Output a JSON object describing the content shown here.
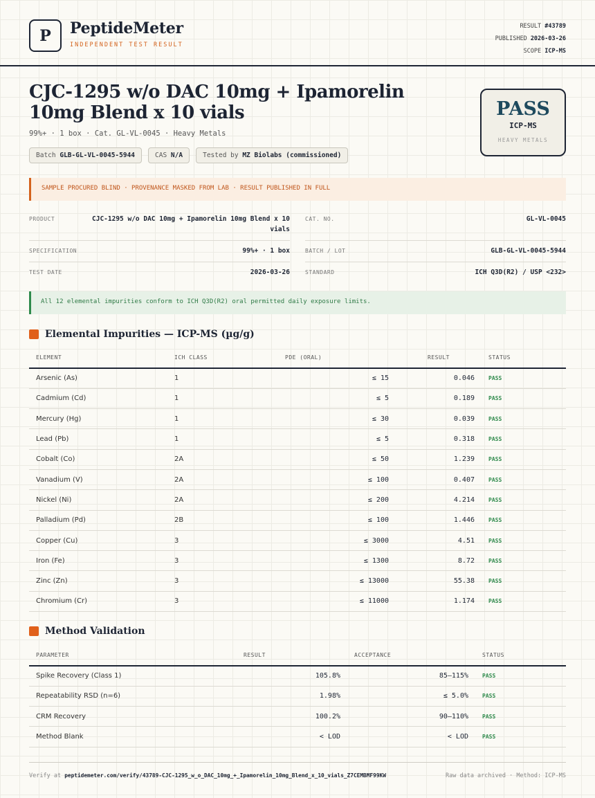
{
  "header": {
    "logo_letter": "P",
    "brand": "PeptideMeter",
    "tagline": "INDEPENDENT TEST RESULT",
    "result_label": "RESULT",
    "result_id": "#43789",
    "published_label": "PUBLISHED",
    "published": "2026-03-26",
    "scope_label": "SCOPE",
    "scope": "ICP-MS"
  },
  "product": {
    "title": "CJC-1295 w/o DAC 10mg + Ipamorelin 10mg Blend x 10 vials",
    "subtitle": "99%+ · 1 box · Cat. GL-VL-0045 · Heavy Metals",
    "chips": {
      "batch_label": "Batch",
      "batch": "GLB-GL-VL-0045-5944",
      "cas_label": "CAS",
      "cas": "N/A",
      "tested_label": "Tested by",
      "tested": "MZ Biolabs (commissioned)"
    }
  },
  "stamp": {
    "verdict": "PASS",
    "method": "ICP-MS",
    "category": "HEAVY METALS"
  },
  "notice": "SAMPLE PROCURED BLIND · PROVENANCE MASKED FROM LAB · RESULT PUBLISHED IN FULL",
  "info": {
    "product_label": "PRODUCT",
    "product": "CJC-1295 w/o DAC 10mg + Ipamorelin 10mg Blend x 10 vials",
    "catno_label": "CAT. NO.",
    "catno": "GL-VL-0045",
    "spec_label": "SPECIFICATION",
    "spec": "99%+ · 1 box",
    "batch_label": "BATCH / LOT",
    "batch": "GLB-GL-VL-0045-5944",
    "date_label": "TEST DATE",
    "date": "2026-03-26",
    "standard_label": "STANDARD",
    "standard": "ICH Q3D(R2) / USP <232>"
  },
  "conformance": "All 12 elemental impurities conform to ICH Q3D(R2) oral permitted daily exposure limits.",
  "impurities": {
    "title": "Elemental Impurities — ICP-MS (µg/g)",
    "headers": [
      "ELEMENT",
      "ICH CLASS",
      "PDE (ORAL)",
      "RESULT",
      "STATUS"
    ],
    "rows": [
      {
        "element": "Arsenic (As)",
        "cls": "1",
        "pde": "≤ 15",
        "result": "0.046",
        "status": "PASS"
      },
      {
        "element": "Cadmium (Cd)",
        "cls": "1",
        "pde": "≤ 5",
        "result": "0.189",
        "status": "PASS"
      },
      {
        "element": "Mercury (Hg)",
        "cls": "1",
        "pde": "≤ 30",
        "result": "0.039",
        "status": "PASS"
      },
      {
        "element": "Lead (Pb)",
        "cls": "1",
        "pde": "≤ 5",
        "result": "0.318",
        "status": "PASS"
      },
      {
        "element": "Cobalt (Co)",
        "cls": "2A",
        "pde": "≤ 50",
        "result": "1.239",
        "status": "PASS"
      },
      {
        "element": "Vanadium (V)",
        "cls": "2A",
        "pde": "≤ 100",
        "result": "0.407",
        "status": "PASS"
      },
      {
        "element": "Nickel (Ni)",
        "cls": "2A",
        "pde": "≤ 200",
        "result": "4.214",
        "status": "PASS"
      },
      {
        "element": "Palladium (Pd)",
        "cls": "2B",
        "pde": "≤ 100",
        "result": "1.446",
        "status": "PASS"
      },
      {
        "element": "Copper (Cu)",
        "cls": "3",
        "pde": "≤ 3000",
        "result": "4.51",
        "status": "PASS"
      },
      {
        "element": "Iron (Fe)",
        "cls": "3",
        "pde": "≤ 1300",
        "result": "8.72",
        "status": "PASS"
      },
      {
        "element": "Zinc (Zn)",
        "cls": "3",
        "pde": "≤ 13000",
        "result": "55.38",
        "status": "PASS"
      },
      {
        "element": "Chromium (Cr)",
        "cls": "3",
        "pde": "≤ 11000",
        "result": "1.174",
        "status": "PASS"
      }
    ]
  },
  "validation": {
    "title": "Method Validation",
    "headers": [
      "PARAMETER",
      "RESULT",
      "ACCEPTANCE",
      "STATUS"
    ],
    "rows": [
      {
        "parameter": "Spike Recovery (Class 1)",
        "result": "105.8%",
        "acceptance": "85–115%",
        "status": "PASS"
      },
      {
        "parameter": "Repeatability RSD (n=6)",
        "result": "1.98%",
        "acceptance": "≤ 5.0%",
        "status": "PASS"
      },
      {
        "parameter": "CRM Recovery",
        "result": "100.2%",
        "acceptance": "90–110%",
        "status": "PASS"
      },
      {
        "parameter": "Method Blank",
        "result": "< LOD",
        "acceptance": "< LOD",
        "status": "PASS"
      }
    ]
  },
  "footer": {
    "verify_label": "Verify at",
    "verify_url": "peptidemeter.com/verify/43789-CJC-1295_w_o_DAC_10mg_+_Ipamorelin_10mg_Blend_x_10_vials_Z7CEMBMF99KW",
    "right": "Raw data archived · Method: ICP-MS"
  }
}
